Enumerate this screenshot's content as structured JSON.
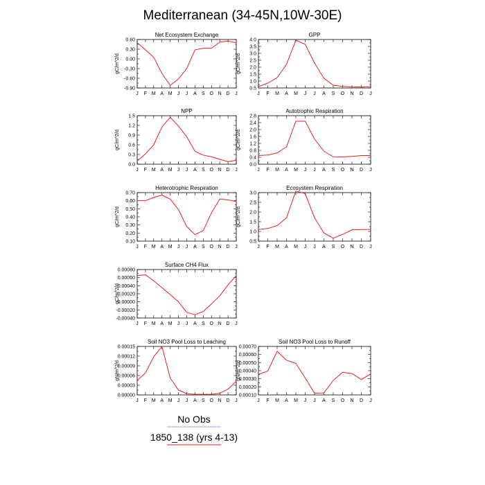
{
  "page": {
    "title": "Mediterranean (34-45N,10W-30E)",
    "legend": [
      {
        "label": "No Obs",
        "color": "#9aa8cc"
      },
      {
        "label": "1850_138 (yrs 4-13)",
        "color": "#e8201a"
      }
    ]
  },
  "chart_data": [
    {
      "type": "line",
      "title": "Net Ecosystem Exchange",
      "ylabel": "gC/m^2/d",
      "categories": [
        "J",
        "F",
        "M",
        "A",
        "M",
        "J",
        "J",
        "A",
        "S",
        "O",
        "N",
        "D",
        "J"
      ],
      "yticks": [
        "0.60",
        "0.30",
        "0.00",
        "-0.30",
        "-0.60",
        "-0.90"
      ],
      "ylim": [
        -0.9,
        0.6
      ],
      "series": [
        {
          "values": [
            0.5,
            0.28,
            0.05,
            -0.45,
            -0.82,
            -0.62,
            -0.3,
            0.28,
            0.33,
            0.33,
            0.52,
            0.55,
            0.5
          ],
          "color": "#e8201a"
        }
      ]
    },
    {
      "type": "line",
      "title": "GPP",
      "ylabel": "gC/m^2/d",
      "categories": [
        "J",
        "F",
        "M",
        "A",
        "M",
        "J",
        "J",
        "A",
        "S",
        "O",
        "N",
        "D",
        "J"
      ],
      "yticks": [
        "4.0",
        "3.5",
        "3.0",
        "2.5",
        "2.0",
        "1.5",
        "1.0",
        "0.5"
      ],
      "ylim": [
        0.5,
        4.0
      ],
      "series": [
        {
          "values": [
            0.6,
            0.85,
            1.25,
            2.2,
            3.95,
            3.65,
            2.3,
            1.2,
            0.7,
            0.62,
            0.58,
            0.57,
            0.6
          ],
          "color": "#e8201a"
        }
      ]
    },
    {
      "type": "line",
      "title": "NPP",
      "ylabel": "gC/m^2/d",
      "categories": [
        "J",
        "F",
        "M",
        "A",
        "M",
        "J",
        "J",
        "A",
        "S",
        "O",
        "N",
        "D",
        "J"
      ],
      "yticks": [
        "1.5",
        "1.2",
        "0.9",
        "0.6",
        "0.3",
        "0.0"
      ],
      "ylim": [
        0.0,
        1.5
      ],
      "series": [
        {
          "values": [
            0.1,
            0.32,
            0.6,
            1.15,
            1.45,
            1.18,
            0.85,
            0.4,
            0.28,
            0.23,
            0.15,
            0.08,
            0.12
          ],
          "color": "#e8201a"
        }
      ]
    },
    {
      "type": "line",
      "title": "Autotrophic Respiration",
      "ylabel": "gC/m^2/d",
      "categories": [
        "J",
        "F",
        "M",
        "A",
        "M",
        "J",
        "J",
        "A",
        "S",
        "O",
        "N",
        "D",
        "J"
      ],
      "yticks": [
        "2.8",
        "2.4",
        "2.0",
        "1.6",
        "1.2",
        "0.8",
        "0.4",
        "0.0"
      ],
      "ylim": [
        0.0,
        2.8
      ],
      "series": [
        {
          "values": [
            0.5,
            0.53,
            0.65,
            1.0,
            2.48,
            2.48,
            1.45,
            0.75,
            0.43,
            0.42,
            0.45,
            0.5,
            0.5
          ],
          "color": "#e8201a"
        }
      ]
    },
    {
      "type": "line",
      "title": "Heterotrophic Respiration",
      "ylabel": "gC/m^2/d",
      "categories": [
        "J",
        "F",
        "M",
        "A",
        "M",
        "J",
        "J",
        "A",
        "S",
        "O",
        "N",
        "D",
        "J"
      ],
      "yticks": [
        "0.70",
        "0.60",
        "0.50",
        "0.40",
        "0.30",
        "0.20",
        "0.10"
      ],
      "ylim": [
        0.1,
        0.7
      ],
      "series": [
        {
          "values": [
            0.6,
            0.6,
            0.64,
            0.67,
            0.62,
            0.49,
            0.28,
            0.18,
            0.23,
            0.45,
            0.62,
            0.61,
            0.59
          ],
          "color": "#e8201a"
        }
      ]
    },
    {
      "type": "line",
      "title": "Ecosystem Respiration",
      "ylabel": "gC/m^2/d",
      "categories": [
        "J",
        "F",
        "M",
        "A",
        "M",
        "J",
        "J",
        "A",
        "S",
        "O",
        "N",
        "D",
        "J"
      ],
      "yticks": [
        "3.0",
        "2.5",
        "2.0",
        "1.5",
        "1.0",
        "0.5"
      ],
      "ylim": [
        0.5,
        3.0
      ],
      "series": [
        {
          "values": [
            1.1,
            1.15,
            1.3,
            1.7,
            3.08,
            2.95,
            1.7,
            0.92,
            0.65,
            0.85,
            1.08,
            1.1,
            1.1
          ],
          "color": "#e8201a"
        }
      ]
    },
    {
      "type": "line",
      "title": "Surface CH4 Flux",
      "ylabel": "gC/m^2/d",
      "categories": [
        "J",
        "F",
        "M",
        "A",
        "M",
        "J",
        "J",
        "A",
        "S",
        "O",
        "N",
        "D",
        "J"
      ],
      "yticks": [
        "0.00080",
        "0.00060",
        "0.00040",
        "0.00020",
        "0.00000",
        "-0.00020",
        "-0.00040"
      ],
      "ylim": [
        -0.0004,
        0.0008
      ],
      "series": [
        {
          "values": [
            0.00065,
            0.00067,
            0.00052,
            0.00035,
            0.00018,
            0.0,
            -0.00026,
            -0.00032,
            -0.00024,
            -5e-05,
            0.00015,
            0.00042,
            0.00065
          ],
          "color": "#e8201a"
        }
      ]
    },
    {
      "type": "line",
      "title": "Soil NO3 Pool Loss to Leaching",
      "ylabel": "gN/m^2/d",
      "categories": [
        "J",
        "F",
        "M",
        "A",
        "M",
        "J",
        "J",
        "A",
        "S",
        "O",
        "N",
        "D",
        "J"
      ],
      "yticks": [
        "0.00015",
        "0.00012",
        "0.00009",
        "0.00006",
        "0.00003",
        "0.00000"
      ],
      "ylim": [
        0.0,
        0.00015
      ],
      "series": [
        {
          "values": [
            4.5e-05,
            6.8e-05,
            0.000118,
            0.00015,
            5.2e-05,
            1.5e-05,
            4e-06,
            2e-06,
            2e-06,
            2e-06,
            5e-06,
            1.8e-05,
            4.2e-05
          ],
          "color": "#e8201a"
        }
      ]
    },
    {
      "type": "line",
      "title": "Soil NO3 Pool Loss to Runoff",
      "ylabel": "gN/m^2/d",
      "categories": [
        "J",
        "F",
        "M",
        "A",
        "M",
        "J",
        "J",
        "A",
        "S",
        "O",
        "N",
        "D",
        "J"
      ],
      "yticks": [
        "0.00070",
        "0.00060",
        "0.00050",
        "0.00040",
        "0.00030",
        "0.00020",
        "0.00010"
      ],
      "ylim": [
        0.0001,
        0.0007
      ],
      "series": [
        {
          "values": [
            0.000355,
            0.000395,
            0.00064,
            0.00053,
            0.00049,
            0.00031,
            0.00012,
            0.000125,
            0.00028,
            0.00038,
            0.000365,
            0.00029,
            0.00036
          ],
          "color": "#e8201a"
        }
      ]
    }
  ]
}
